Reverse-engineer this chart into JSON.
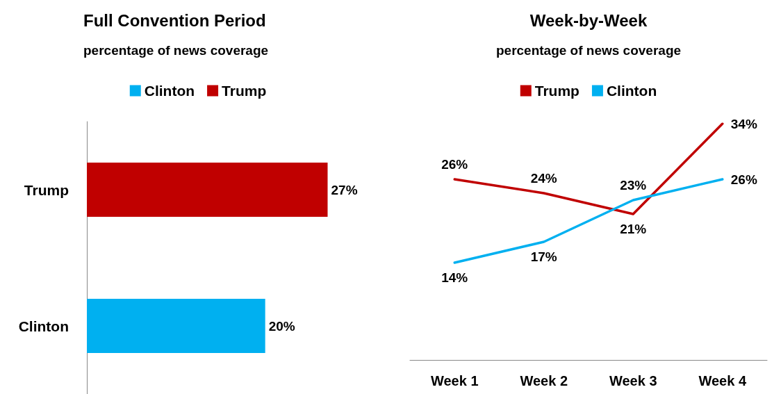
{
  "chart_data": [
    {
      "type": "bar",
      "title": "Full Convention Period",
      "subtitle": "percentage of news coverage",
      "orientation": "horizontal",
      "stacked": true,
      "legend": "top",
      "categories": [
        "Trump",
        "Clinton"
      ],
      "series": [
        {
          "name": "Clinton",
          "color": "#00b0f0",
          "values": [
            null,
            20
          ],
          "value_labels": [
            null,
            "20%"
          ]
        },
        {
          "name": "Trump",
          "color": "#c00000",
          "values": [
            27,
            null
          ],
          "value_labels": [
            "27%",
            null
          ]
        }
      ]
    },
    {
      "type": "line",
      "title": "Week-by-Week",
      "subtitle": "percentage of news coverage",
      "legend": "top",
      "marker": "none",
      "line_style": "solid",
      "categories": [
        "Week 1",
        "Week 2",
        "Week 3",
        "Week 4"
      ],
      "series": [
        {
          "name": "Trump",
          "color": "#c00000",
          "values": [
            26,
            24,
            21,
            34
          ],
          "value_labels": [
            "26%",
            "24%",
            "21%",
            "34%"
          ]
        },
        {
          "name": "Clinton",
          "color": "#00b0f0",
          "values": [
            14,
            17,
            23,
            26
          ],
          "value_labels": [
            "14%",
            "17%",
            "23%",
            "26%"
          ]
        }
      ]
    }
  ]
}
